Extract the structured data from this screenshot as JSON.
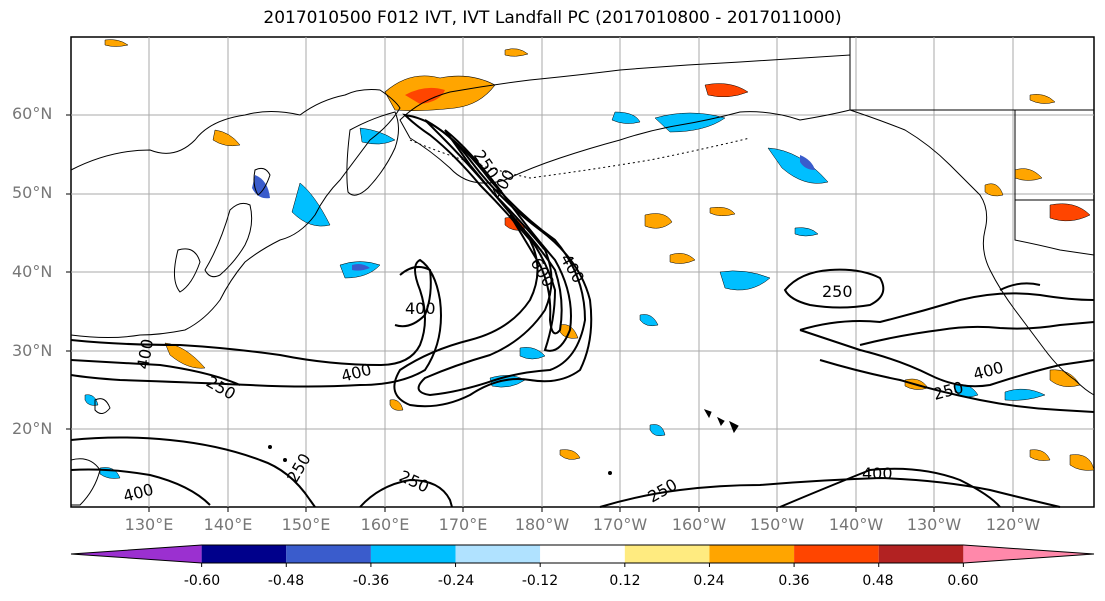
{
  "title": "2017010500 F012 IVT, IVT Landfall PC (2017010800 - 2017011000)",
  "lat_labels": [
    "60°N",
    "50°N",
    "40°N",
    "30°N",
    "20°N"
  ],
  "lon_labels": [
    "130°E",
    "140°E",
    "150°E",
    "160°E",
    "170°E",
    "180°W",
    "170°W",
    "160°W",
    "150°W",
    "140°W",
    "130°W",
    "120°W"
  ],
  "contour_labels": [
    "250",
    "400",
    "600",
    "400",
    "250",
    "400",
    "400",
    "250",
    "400",
    "250",
    "250",
    "400",
    "250",
    "400",
    "250",
    "400"
  ],
  "colorbar": {
    "colors": [
      "#9b30d0",
      "#00008b",
      "#3a5ccc",
      "#00bfff",
      "#b0e2ff",
      "#ffffff",
      "#ffeb80",
      "#ffa500",
      "#ff4500",
      "#b22222",
      "#ff88aa"
    ],
    "tick_labels": [
      "-0.60",
      "-0.48",
      "-0.36",
      "-0.24",
      "-0.12",
      "0.12",
      "0.24",
      "0.36",
      "0.48",
      "0.60"
    ]
  },
  "colors": {
    "land_outline": "#000000",
    "grid": "#aaaaaa",
    "contour": "#000000"
  }
}
